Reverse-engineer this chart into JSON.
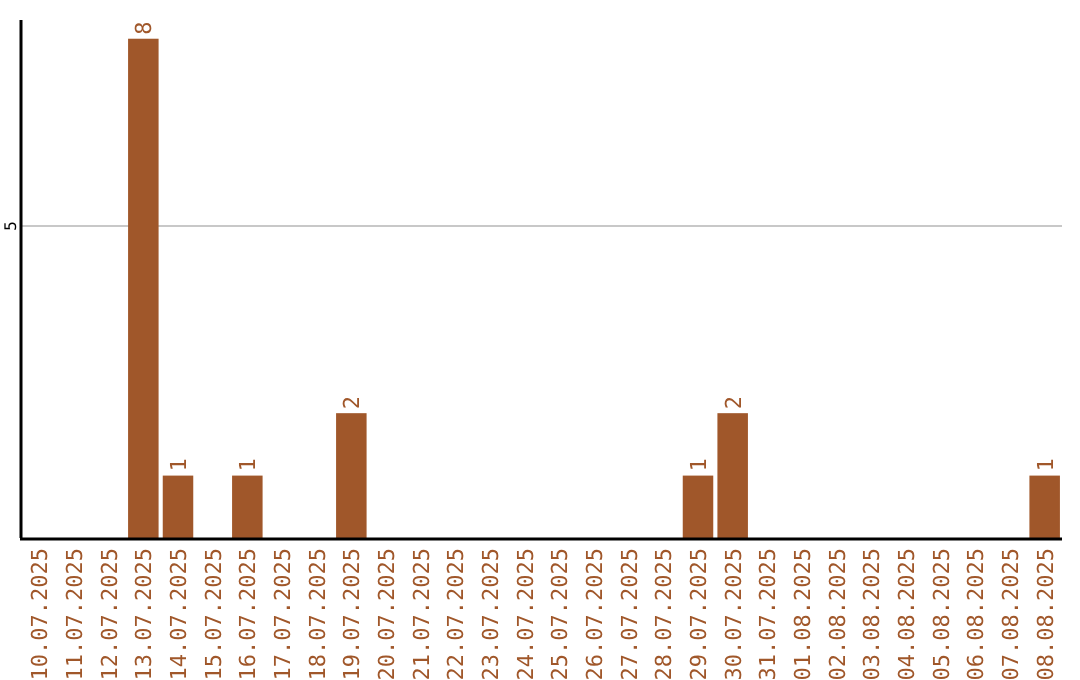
{
  "chart_data": {
    "type": "bar",
    "categories": [
      "10.07.2025",
      "11.07.2025",
      "12.07.2025",
      "13.07.2025",
      "14.07.2025",
      "15.07.2025",
      "16.07.2025",
      "17.07.2025",
      "18.07.2025",
      "19.07.2025",
      "20.07.2025",
      "21.07.2025",
      "22.07.2025",
      "23.07.2025",
      "24.07.2025",
      "25.07.2025",
      "26.07.2025",
      "27.07.2025",
      "28.07.2025",
      "29.07.2025",
      "30.07.2025",
      "31.07.2025",
      "01.08.2025",
      "02.08.2025",
      "03.08.2025",
      "04.08.2025",
      "05.08.2025",
      "06.08.2025",
      "07.08.2025",
      "08.08.2025"
    ],
    "values": [
      0,
      0,
      0,
      8,
      1,
      0,
      1,
      0,
      0,
      2,
      0,
      0,
      0,
      0,
      0,
      0,
      0,
      0,
      0,
      1,
      2,
      0,
      0,
      0,
      0,
      0,
      0,
      0,
      0,
      1
    ],
    "value_labels": [
      null,
      null,
      null,
      "8",
      "1",
      null,
      "1",
      null,
      null,
      "2",
      null,
      null,
      null,
      null,
      null,
      null,
      null,
      null,
      null,
      "1",
      "2",
      null,
      null,
      null,
      null,
      null,
      null,
      null,
      null,
      "1"
    ],
    "color": "#a0572a",
    "ylim": [
      0,
      8.3
    ],
    "yticks": [
      5
    ],
    "grid": "y"
  }
}
